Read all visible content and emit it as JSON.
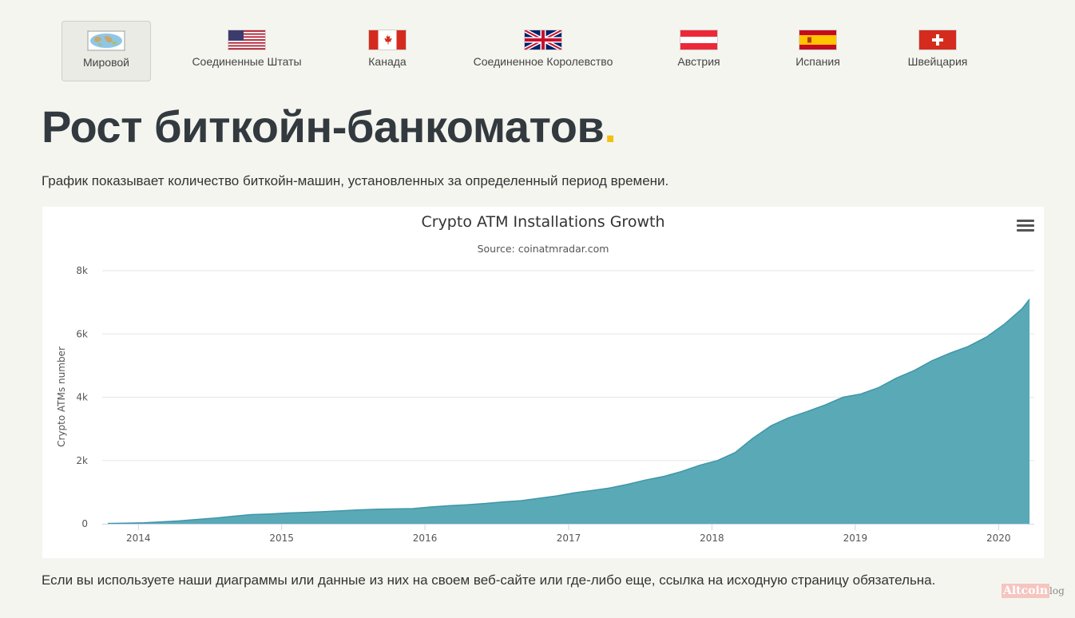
{
  "tabs": [
    {
      "label": "Мировой",
      "icon": "world-map-icon",
      "active": true
    },
    {
      "label": "Соединенные Штаты",
      "icon": "us-flag-icon"
    },
    {
      "label": "Канада",
      "icon": "canada-flag-icon"
    },
    {
      "label": "Соединенное Королевство",
      "icon": "uk-flag-icon"
    },
    {
      "label": "Австрия",
      "icon": "austria-flag-icon"
    },
    {
      "label": "Испания",
      "icon": "spain-flag-icon"
    },
    {
      "label": "Швейцария",
      "icon": "switzerland-flag-icon"
    }
  ],
  "page": {
    "title": "Рост биткойн-банкоматов",
    "title_dot": ".",
    "description": "График показывает количество биткойн-машин, установленных за определенный период времени.",
    "footer": "Если вы используете наши диаграммы или данные из них на своем веб-сайте или где-либо еще, ссылка на исходную страницу обязательна."
  },
  "watermark": {
    "part1": "Altcoin",
    "part2": "log"
  },
  "colors": {
    "accent_dot": "#f2c10f",
    "series_fill": "#5aa9b7",
    "title": "#333a3f"
  },
  "chart_data": {
    "type": "area",
    "title": "Crypto ATM Installations Growth",
    "subtitle": "Source: coinatmradar.com",
    "ylabel": "Crypto ATMs number",
    "xlabel": "",
    "ylim": [
      0,
      8000
    ],
    "xlim": [
      "2013-10-01",
      "2020-04-01"
    ],
    "yticks": [
      {
        "value": 0,
        "label": "0"
      },
      {
        "value": 2000,
        "label": "2k"
      },
      {
        "value": 4000,
        "label": "4k"
      },
      {
        "value": 6000,
        "label": "6k"
      },
      {
        "value": 8000,
        "label": "8k"
      }
    ],
    "xticks": [
      {
        "value": "2014-01-01",
        "label": "2014"
      },
      {
        "value": "2015-01-01",
        "label": "2015"
      },
      {
        "value": "2016-01-01",
        "label": "2016"
      },
      {
        "value": "2017-01-01",
        "label": "2017"
      },
      {
        "value": "2018-01-01",
        "label": "2018"
      },
      {
        "value": "2019-01-01",
        "label": "2019"
      },
      {
        "value": "2020-01-01",
        "label": "2020"
      }
    ],
    "grid": true,
    "series": [
      {
        "x": [
          "2013-10-15",
          "2013-12-01",
          "2014-01-15",
          "2014-03-01",
          "2014-04-15",
          "2014-06-01",
          "2014-07-15",
          "2014-09-01",
          "2014-10-15",
          "2014-12-01",
          "2015-01-15",
          "2015-03-01",
          "2015-04-15",
          "2015-06-01",
          "2015-07-15",
          "2015-09-01",
          "2015-10-15",
          "2015-12-01",
          "2016-01-15",
          "2016-03-01",
          "2016-04-15",
          "2016-06-01",
          "2016-07-15",
          "2016-09-01",
          "2016-10-15",
          "2016-12-01",
          "2017-01-15",
          "2017-03-01",
          "2017-04-15",
          "2017-06-01",
          "2017-07-15",
          "2017-09-01",
          "2017-10-15",
          "2017-12-01",
          "2018-01-15",
          "2018-03-01",
          "2018-04-15",
          "2018-06-01",
          "2018-07-15",
          "2018-09-01",
          "2018-10-15",
          "2018-12-01",
          "2019-01-15",
          "2019-03-01",
          "2019-04-15",
          "2019-06-01",
          "2019-07-15",
          "2019-09-01",
          "2019-10-15",
          "2019-12-01",
          "2020-01-15",
          "2020-03-01",
          "2020-03-20"
        ],
        "values": [
          10,
          20,
          30,
          60,
          90,
          140,
          180,
          240,
          290,
          310,
          340,
          360,
          380,
          410,
          440,
          460,
          470,
          480,
          530,
          570,
          600,
          640,
          690,
          730,
          800,
          880,
          980,
          1050,
          1130,
          1250,
          1380,
          1500,
          1650,
          1850,
          2000,
          2250,
          2700,
          3100,
          3350,
          3550,
          3750,
          4000,
          4100,
          4300,
          4600,
          4850,
          5150,
          5400,
          5600,
          5900,
          6300,
          6800,
          7100
        ]
      }
    ]
  }
}
